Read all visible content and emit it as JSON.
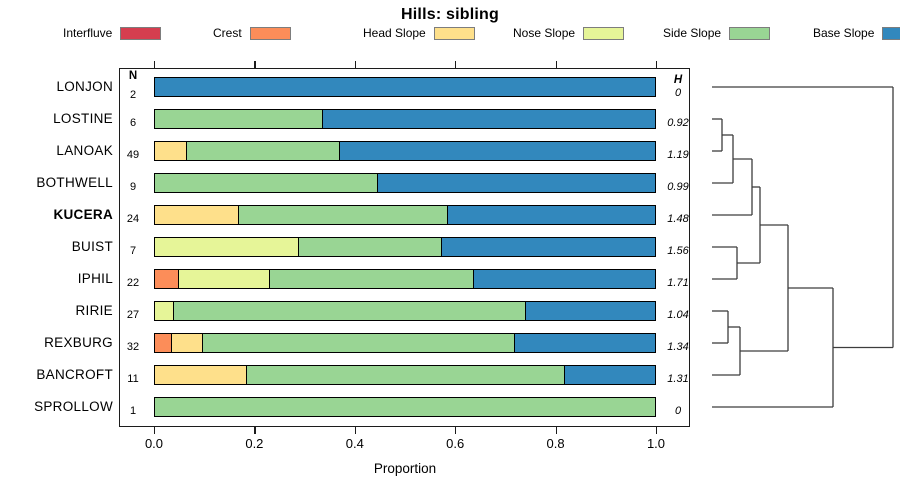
{
  "title": "Hills: sibling",
  "columns": {
    "n_header": "N",
    "h_header": "H"
  },
  "axis": {
    "label": "Proportion",
    "ticks": [
      "0.0",
      "0.2",
      "0.4",
      "0.6",
      "0.8",
      "1.0"
    ]
  },
  "legend": {
    "items": [
      {
        "label": "Interfluve",
        "color": "#D53E4F"
      },
      {
        "label": "Crest",
        "color": "#FC8D59"
      },
      {
        "label": "Head Slope",
        "color": "#FEE08B"
      },
      {
        "label": "Nose Slope",
        "color": "#E6F598"
      },
      {
        "label": "Side Slope",
        "color": "#99D594"
      },
      {
        "label": "Base Slope",
        "color": "#3288BD"
      }
    ]
  },
  "chart_data": {
    "type": "bar",
    "variant": "horizontal-stacked-proportion",
    "title": "Hills: sibling",
    "xlabel": "Proportion",
    "xlim": [
      0,
      1
    ],
    "xticks": [
      0.0,
      0.2,
      0.4,
      0.6,
      0.8,
      1.0
    ],
    "categories": [
      "Interfluve",
      "Crest",
      "Head Slope",
      "Nose Slope",
      "Side Slope",
      "Base Slope"
    ],
    "colors": {
      "Interfluve": "#D53E4F",
      "Crest": "#FC8D59",
      "Head Slope": "#FEE08B",
      "Nose Slope": "#E6F598",
      "Side Slope": "#99D594",
      "Base Slope": "#3288BD"
    },
    "rows": [
      {
        "label": "LONJON",
        "n": 2,
        "h": "0",
        "bold": false,
        "segments": [
          {
            "category": "Base Slope",
            "value": 1.0
          }
        ]
      },
      {
        "label": "LOSTINE",
        "n": 6,
        "h": "0.92",
        "bold": false,
        "segments": [
          {
            "category": "Side Slope",
            "value": 0.3333
          },
          {
            "category": "Base Slope",
            "value": 0.6667
          }
        ]
      },
      {
        "label": "LANOAK",
        "n": 49,
        "h": "1.19",
        "bold": false,
        "segments": [
          {
            "category": "Head Slope",
            "value": 0.0612
          },
          {
            "category": "Side Slope",
            "value": 0.3061
          },
          {
            "category": "Base Slope",
            "value": 0.6327
          }
        ]
      },
      {
        "label": "BOTHWELL",
        "n": 9,
        "h": "0.99",
        "bold": false,
        "segments": [
          {
            "category": "Side Slope",
            "value": 0.4444
          },
          {
            "category": "Base Slope",
            "value": 0.5556
          }
        ]
      },
      {
        "label": "KUCERA",
        "n": 24,
        "h": "1.48",
        "bold": true,
        "segments": [
          {
            "category": "Head Slope",
            "value": 0.1667
          },
          {
            "category": "Side Slope",
            "value": 0.4167
          },
          {
            "category": "Base Slope",
            "value": 0.4166
          }
        ]
      },
      {
        "label": "BUIST",
        "n": 7,
        "h": "1.56",
        "bold": false,
        "segments": [
          {
            "category": "Nose Slope",
            "value": 0.2857
          },
          {
            "category": "Side Slope",
            "value": 0.2857
          },
          {
            "category": "Base Slope",
            "value": 0.4286
          }
        ]
      },
      {
        "label": "IPHIL",
        "n": 22,
        "h": "1.71",
        "bold": false,
        "segments": [
          {
            "category": "Crest",
            "value": 0.0455
          },
          {
            "category": "Nose Slope",
            "value": 0.1818
          },
          {
            "category": "Side Slope",
            "value": 0.4091
          },
          {
            "category": "Base Slope",
            "value": 0.3636
          }
        ]
      },
      {
        "label": "RIRIE",
        "n": 27,
        "h": "1.04",
        "bold": false,
        "segments": [
          {
            "category": "Nose Slope",
            "value": 0.037
          },
          {
            "category": "Side Slope",
            "value": 0.7037
          },
          {
            "category": "Base Slope",
            "value": 0.2593
          }
        ]
      },
      {
        "label": "REXBURG",
        "n": 32,
        "h": "1.34",
        "bold": false,
        "segments": [
          {
            "category": "Crest",
            "value": 0.0313
          },
          {
            "category": "Head Slope",
            "value": 0.0625
          },
          {
            "category": "Side Slope",
            "value": 0.625
          },
          {
            "category": "Base Slope",
            "value": 0.2812
          }
        ]
      },
      {
        "label": "BANCROFT",
        "n": 11,
        "h": "1.31",
        "bold": false,
        "segments": [
          {
            "category": "Head Slope",
            "value": 0.1818
          },
          {
            "category": "Side Slope",
            "value": 0.6364
          },
          {
            "category": "Base Slope",
            "value": 0.1818
          }
        ]
      },
      {
        "label": "SPROLLOW",
        "n": 1,
        "h": "0",
        "bold": false,
        "segments": [
          {
            "category": "Side Slope",
            "value": 1.0
          }
        ]
      }
    ],
    "dendrogram": {
      "leaf_x": 712,
      "root_x": 893,
      "merges": [
        {
          "a": "LOSTINE",
          "b": "LANOAK",
          "x": 722
        },
        {
          "a": "@0",
          "b": "BOTHWELL",
          "x": 733
        },
        {
          "a": "@1",
          "b": "KUCERA",
          "x": 752
        },
        {
          "a": "BUIST",
          "b": "IPHIL",
          "x": 737
        },
        {
          "a": "@2",
          "b": "@3",
          "x": 760
        },
        {
          "a": "RIRIE",
          "b": "REXBURG",
          "x": 728
        },
        {
          "a": "@5",
          "b": "BANCROFT",
          "x": 740
        },
        {
          "a": "@4",
          "b": "@6",
          "x": 788
        },
        {
          "a": "@7",
          "b": "SPROLLOW",
          "x": 833
        },
        {
          "a": "LONJON",
          "b": "@8",
          "x": 893
        }
      ]
    }
  }
}
